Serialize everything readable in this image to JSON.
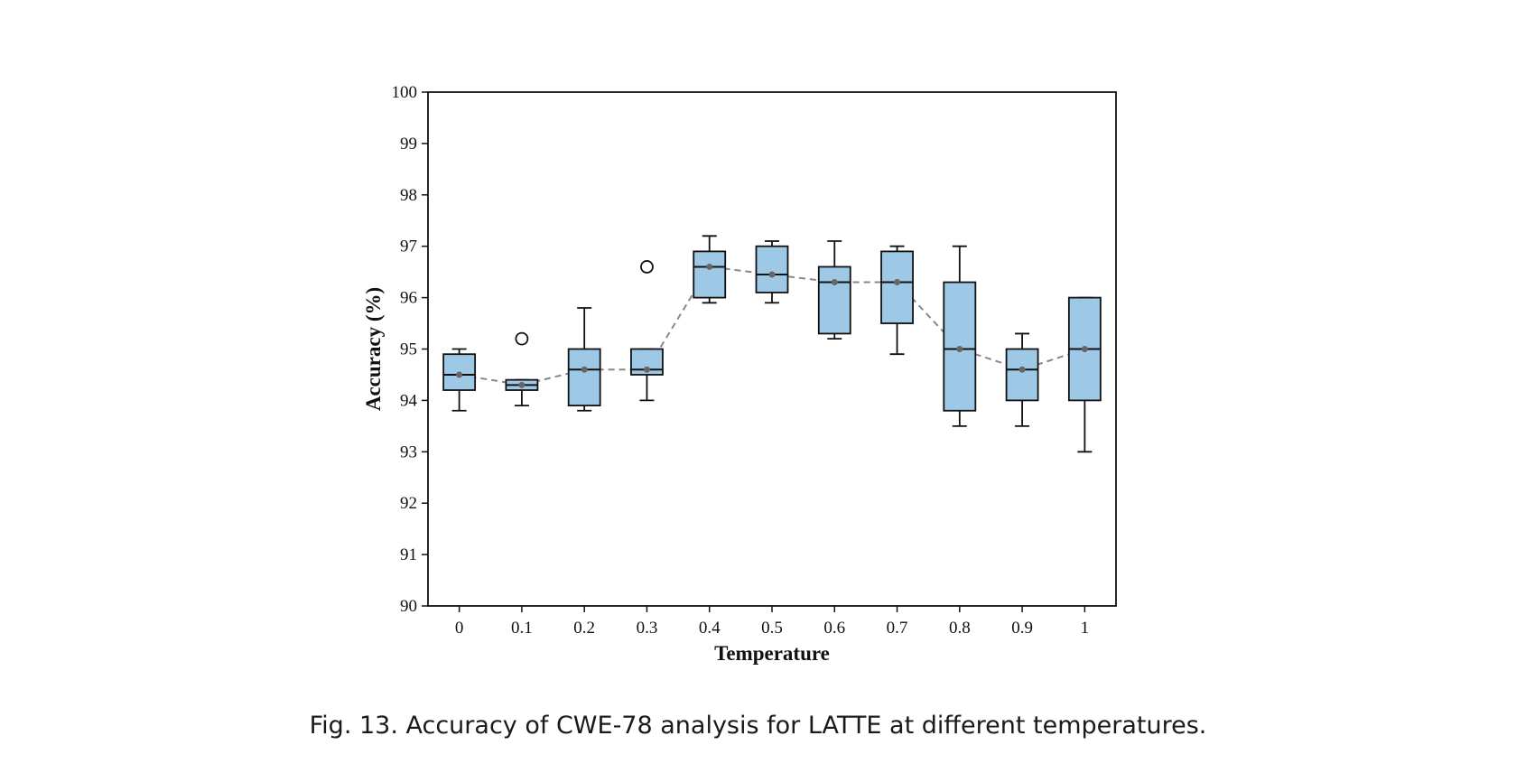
{
  "caption": "Fig. 13.  Accuracy of CWE-78 analysis for LATTE at different temperatures.",
  "chart_data": {
    "type": "box",
    "xlabel": "Temperature",
    "ylabel": "Accuracy (%)",
    "ylim": [
      90,
      100
    ],
    "yticks": [
      "90",
      "91",
      "92",
      "93",
      "94",
      "95",
      "96",
      "97",
      "98",
      "99",
      "100"
    ],
    "categories": [
      "0",
      "0.1",
      "0.2",
      "0.3",
      "0.4",
      "0.5",
      "0.6",
      "0.7",
      "0.8",
      "0.9",
      "1"
    ],
    "box_color": "#9dc9e6",
    "mean_line_color": "#888888",
    "boxes": [
      {
        "whisker_low": 93.8,
        "q1": 94.2,
        "median": 94.5,
        "q3": 94.9,
        "whisker_high": 95.0,
        "mean": 94.5,
        "outliers": []
      },
      {
        "whisker_low": 93.9,
        "q1": 94.2,
        "median": 94.3,
        "q3": 94.4,
        "whisker_high": 94.4,
        "mean": 94.3,
        "outliers": [
          95.2
        ]
      },
      {
        "whisker_low": 93.8,
        "q1": 93.9,
        "median": 94.6,
        "q3": 95.0,
        "whisker_high": 95.8,
        "mean": 94.6,
        "outliers": []
      },
      {
        "whisker_low": 94.0,
        "q1": 94.5,
        "median": 94.6,
        "q3": 95.0,
        "whisker_high": 95.0,
        "mean": 94.6,
        "outliers": [
          96.6
        ]
      },
      {
        "whisker_low": 95.9,
        "q1": 96.0,
        "median": 96.6,
        "q3": 96.9,
        "whisker_high": 97.2,
        "mean": 96.6,
        "outliers": []
      },
      {
        "whisker_low": 95.9,
        "q1": 96.1,
        "median": 96.45,
        "q3": 97.0,
        "whisker_high": 97.1,
        "mean": 96.45,
        "outliers": []
      },
      {
        "whisker_low": 95.2,
        "q1": 95.3,
        "median": 96.3,
        "q3": 96.6,
        "whisker_high": 97.1,
        "mean": 96.3,
        "outliers": []
      },
      {
        "whisker_low": 94.9,
        "q1": 95.5,
        "median": 96.3,
        "q3": 96.9,
        "whisker_high": 97.0,
        "mean": 96.3,
        "outliers": []
      },
      {
        "whisker_low": 93.5,
        "q1": 93.8,
        "median": 95.0,
        "q3": 96.3,
        "whisker_high": 97.0,
        "mean": 95.0,
        "outliers": []
      },
      {
        "whisker_low": 93.5,
        "q1": 94.0,
        "median": 94.6,
        "q3": 95.0,
        "whisker_high": 95.3,
        "mean": 94.6,
        "outliers": []
      },
      {
        "whisker_low": 93.0,
        "q1": 94.0,
        "median": 95.0,
        "q3": 96.0,
        "whisker_high": 96.0,
        "mean": 95.0,
        "outliers": []
      }
    ]
  }
}
